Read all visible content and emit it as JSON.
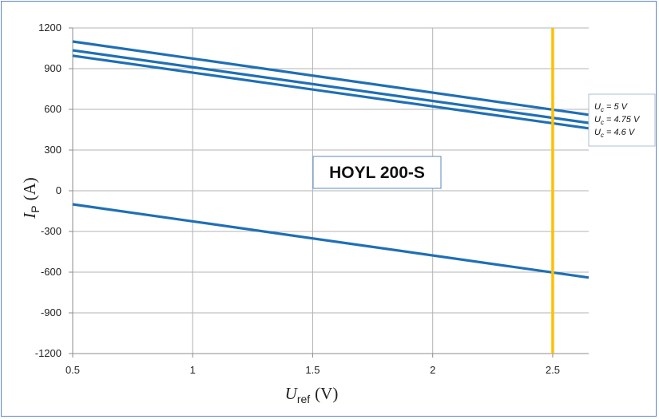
{
  "chart_data": {
    "type": "line",
    "xlim": [
      0.5,
      2.65
    ],
    "ylim": [
      -1200,
      1200
    ],
    "x_ticks": [
      0.5,
      1,
      1.5,
      2,
      2.5
    ],
    "x_tick_labels": [
      "0.5",
      "1",
      "1.5",
      "2",
      "2.5"
    ],
    "y_ticks": [
      1200,
      900,
      600,
      300,
      0,
      -300,
      -600,
      -900,
      -1200
    ],
    "y_tick_labels": [
      "1200",
      "900",
      "600",
      "300",
      "0",
      "-300",
      "-600",
      "-900",
      "-1200"
    ],
    "xlabel": {
      "main": "U",
      "sub": "ref",
      "unit": "(V)"
    },
    "ylabel": {
      "main": "I",
      "sub": "P",
      "unit": "(A)"
    },
    "grid": true,
    "legend_position": "right",
    "series": [
      {
        "name": "U_c = 5 V",
        "color": "#1f6fb5",
        "x": [
          0.5,
          2.65
        ],
        "y": [
          1100,
          560
        ]
      },
      {
        "name": "U_c = 4.75 V",
        "color": "#1f6fb5",
        "x": [
          0.5,
          2.65
        ],
        "y": [
          1035,
          500
        ]
      },
      {
        "name": "U_c = 4.6 V",
        "color": "#1f6fb5",
        "x": [
          0.5,
          2.65
        ],
        "y": [
          995,
          460
        ]
      },
      {
        "color": "#1f6fb5",
        "x": [
          0.5,
          2.65
        ],
        "y": [
          -100,
          -640
        ]
      }
    ],
    "reference_line": {
      "x": 2.5,
      "color": "#ffc000"
    },
    "annotation": "HOYL 200-S",
    "legend_entries": [
      {
        "main": "U",
        "sub": "c",
        "rest": " = 5 V"
      },
      {
        "main": "U",
        "sub": "c",
        "rest": " = 4.75 V"
      },
      {
        "main": "U",
        "sub": "c",
        "rest": " = 4.6 V"
      }
    ]
  }
}
